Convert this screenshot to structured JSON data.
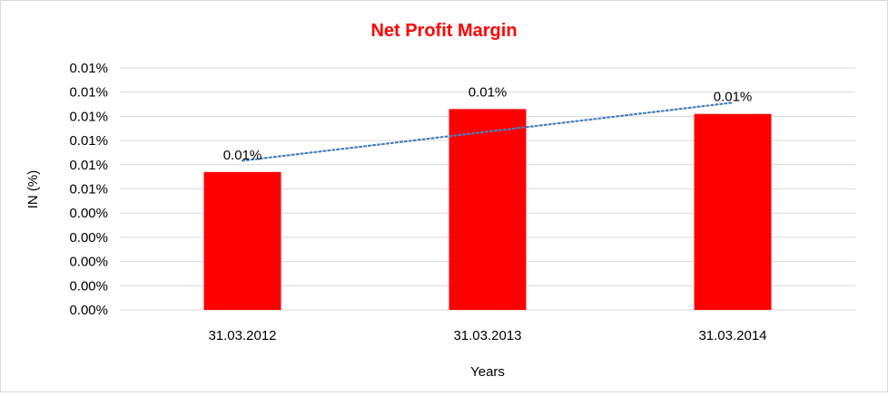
{
  "colors": {
    "title": "#ff0000",
    "bar": "#ff0000",
    "trendline": "#4a7ebb",
    "grid": "#d9d9d9"
  },
  "chart_data": {
    "type": "bar",
    "title": "Net Profit Margin",
    "xlabel": "Years",
    "ylabel": "IN (%)",
    "categories": [
      "31.03.2012",
      "31.03.2013",
      "31.03.2014"
    ],
    "values": [
      0.0057,
      0.0083,
      0.0081
    ],
    "data_labels": [
      "0.01%",
      "0.01%",
      "0.01%"
    ],
    "ylim": [
      0,
      0.01
    ],
    "yticks": [
      0,
      0.001,
      0.002,
      0.003,
      0.004,
      0.005,
      0.006,
      0.007,
      0.008,
      0.009,
      0.01
    ],
    "ytick_labels": [
      "0.00%",
      "0.00%",
      "0.00%",
      "0.00%",
      "0.00%",
      "0.01%",
      "0.01%",
      "0.01%",
      "0.01%",
      "0.01%",
      "0.01%"
    ],
    "grid": true,
    "legend": false,
    "trendline": {
      "type": "linear",
      "style": "dotted"
    }
  }
}
